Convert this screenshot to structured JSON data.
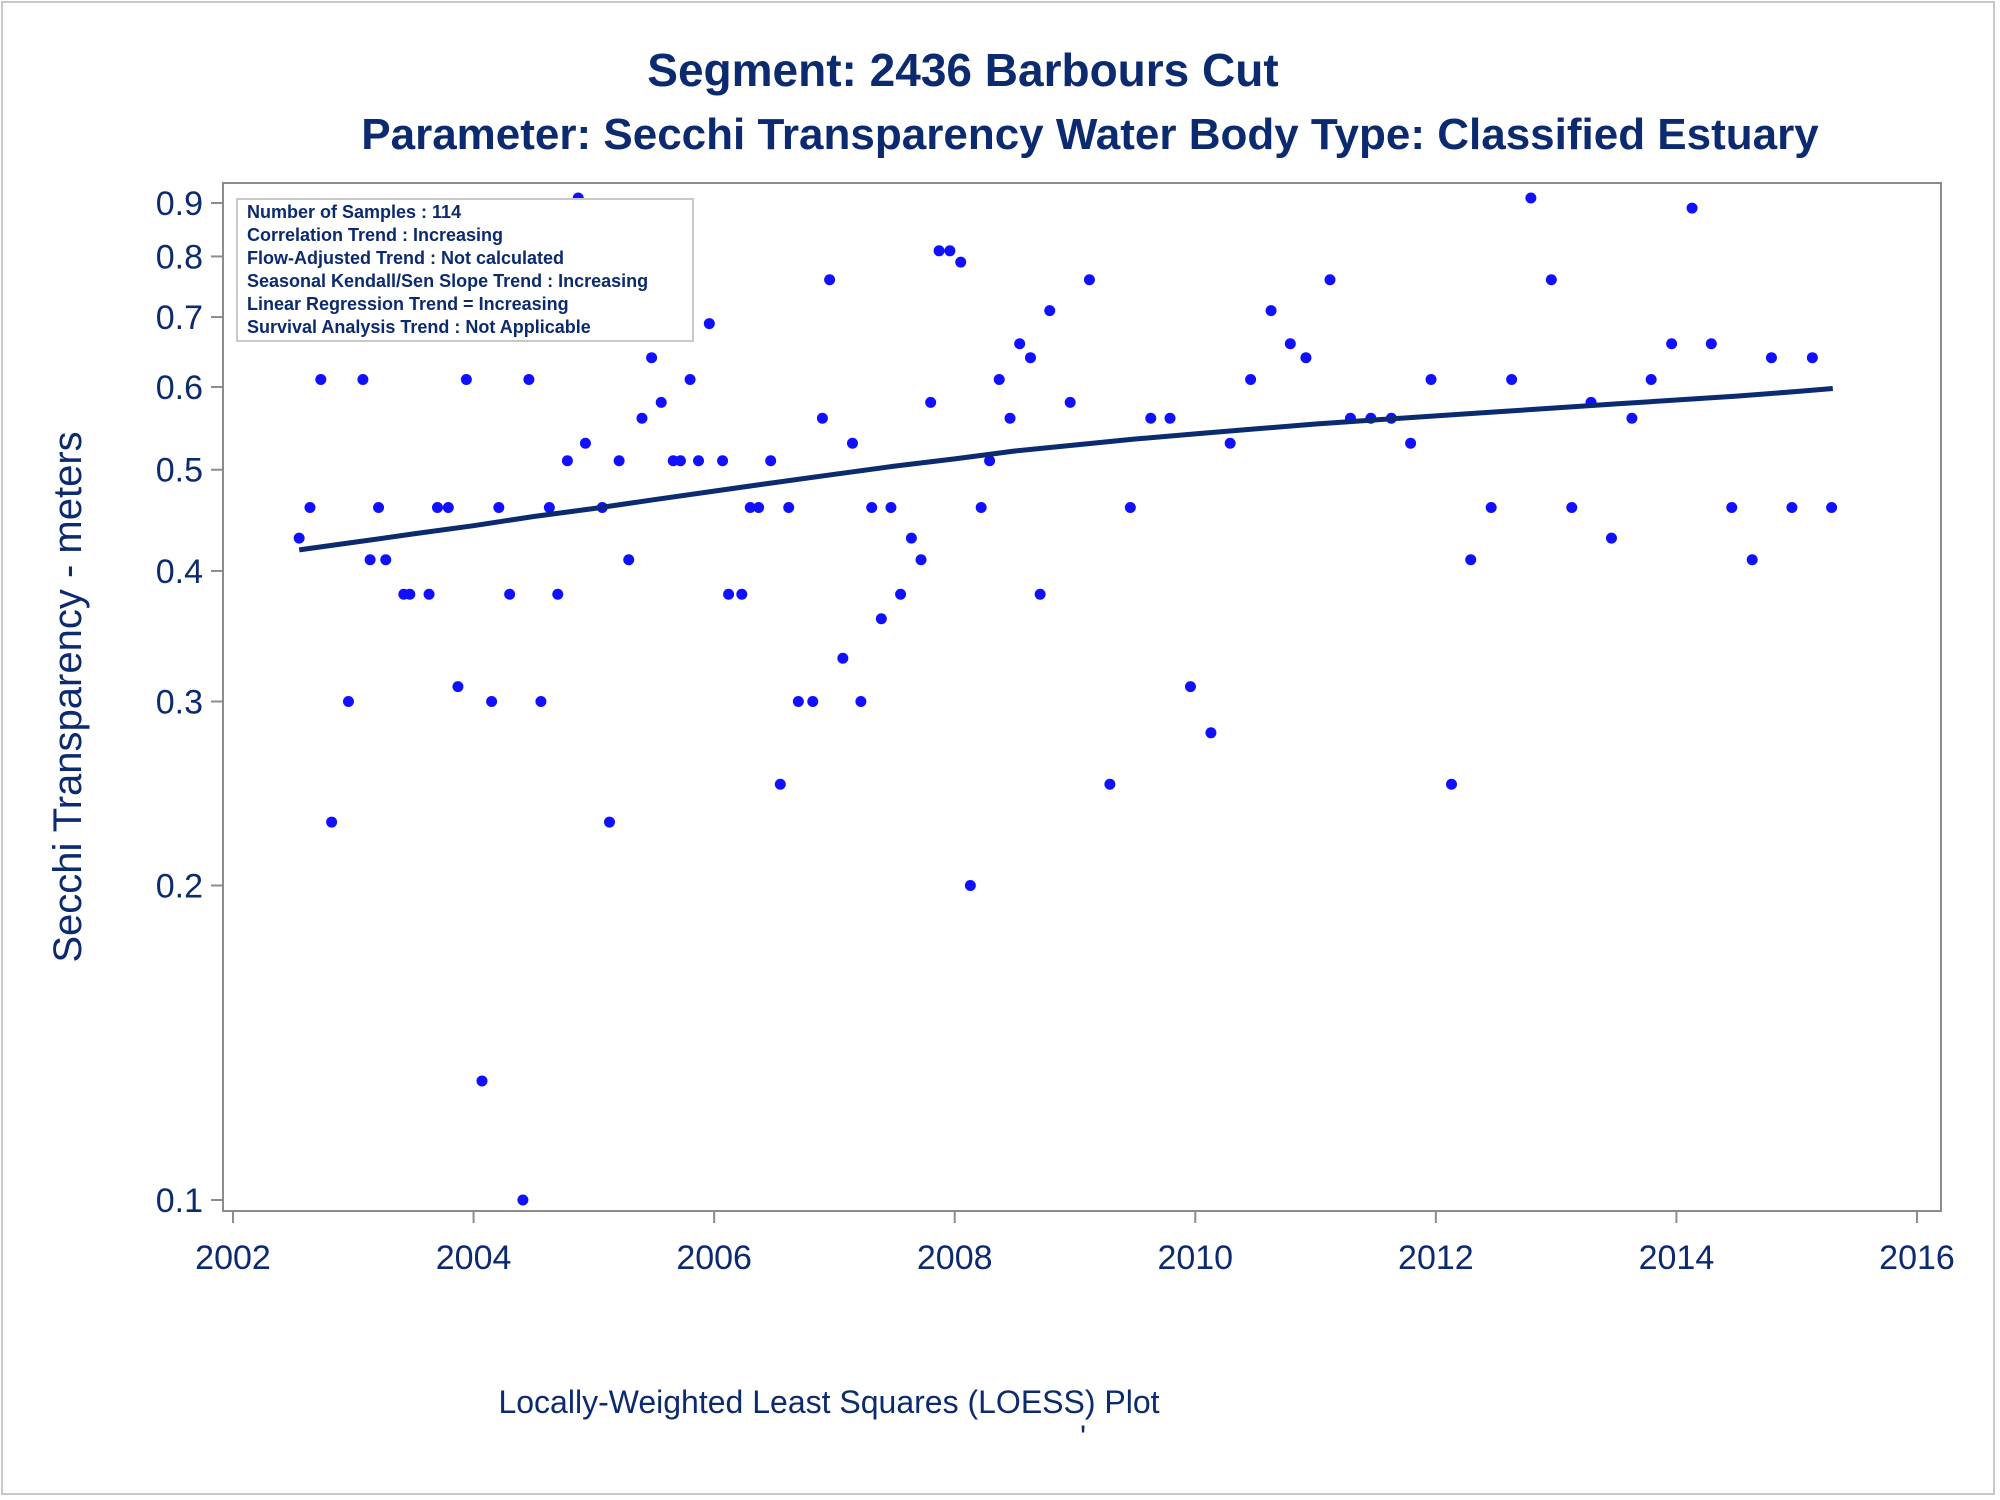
{
  "titles": {
    "line1": "Segment: 2436  Barbours Cut",
    "line2": "Parameter: Secchi Transparency   Water Body Type: Classified Estuary"
  },
  "footnote": "Locally-Weighted Least Squares (LOESS) Plot",
  "footnote_mark": "'",
  "stats_box": [
    "Number of Samples : 114",
    "Correlation Trend : Increasing",
    "Flow-Adjusted Trend : Not calculated",
    "Seasonal Kendall/Sen Slope Trend : Increasing",
    "Linear Regression Trend = Increasing",
    "Survival Analysis Trend : Not Applicable"
  ],
  "colors": {
    "title": "#0b2a6f",
    "points": "#1010ff",
    "loess_line": "#0b2a6f",
    "axis": "#8c8c8c"
  },
  "chart_data": {
    "type": "scatter",
    "xlabel": "",
    "ylabel": "Secchi Transparency - meters",
    "xlim": [
      2002,
      2016
    ],
    "ylim": [
      0.1,
      0.9
    ],
    "y_scale": "log",
    "x_ticks": [
      2002,
      2004,
      2006,
      2008,
      2010,
      2012,
      2014,
      2016
    ],
    "y_ticks": [
      0.1,
      0.2,
      0.3,
      0.4,
      0.5,
      0.6,
      0.7,
      0.8,
      0.9
    ],
    "grid": false,
    "legend": "none",
    "series": [
      {
        "type": "scatter",
        "x": [
          2002.55,
          2002.64,
          2002.73,
          2002.82,
          2002.87,
          2002.96,
          2003.08,
          2003.14,
          2003.21,
          2003.27,
          2003.42,
          2003.47,
          2003.63,
          2003.7,
          2003.79,
          2003.87,
          2003.94,
          2004.07,
          2004.15,
          2004.21,
          2004.3,
          2004.41,
          2004.46,
          2004.56,
          2004.63,
          2004.7,
          2004.78,
          2004.87,
          2004.93,
          2005.07,
          2005.13,
          2005.21,
          2005.29,
          2005.4,
          2005.48,
          2005.56,
          2005.66,
          2005.72,
          2005.8,
          2005.87,
          2005.96,
          2006.07,
          2006.12,
          2006.23,
          2006.3,
          2006.37,
          2006.47,
          2006.55,
          2006.62,
          2006.7,
          2006.82,
          2006.9,
          2006.96,
          2007.07,
          2007.15,
          2007.22,
          2007.31,
          2007.39,
          2007.47,
          2007.55,
          2007.64,
          2007.72,
          2007.8,
          2007.87,
          2007.96,
          2008.05,
          2008.13,
          2008.22,
          2008.29,
          2008.37,
          2008.46,
          2008.54,
          2008.63,
          2008.71,
          2008.79,
          2008.96,
          2009.12,
          2009.29,
          2009.46,
          2009.63,
          2009.79,
          2009.96,
          2010.13,
          2010.29,
          2010.46,
          2010.63,
          2010.79,
          2010.92,
          2011.12,
          2011.29,
          2011.46,
          2011.63,
          2011.79,
          2011.96,
          2012.13,
          2012.29,
          2012.46,
          2012.63,
          2012.79,
          2012.96,
          2013.13,
          2013.29,
          2013.46,
          2013.63,
          2013.79,
          2013.96,
          2014.13,
          2014.29,
          2014.46,
          2014.63,
          2014.79,
          2014.96,
          2015.13,
          2015.29
        ],
        "y": [
          0.43,
          0.46,
          0.61,
          0.23,
          0.69,
          0.3,
          0.61,
          0.41,
          0.46,
          0.41,
          0.38,
          0.38,
          0.38,
          0.46,
          0.46,
          0.31,
          0.61,
          0.13,
          0.3,
          0.46,
          0.38,
          0.1,
          0.61,
          0.3,
          0.46,
          0.38,
          0.51,
          0.91,
          0.53,
          0.46,
          0.23,
          0.51,
          0.41,
          0.56,
          0.64,
          0.58,
          0.51,
          0.51,
          0.61,
          0.51,
          0.69,
          0.51,
          0.38,
          0.38,
          0.46,
          0.46,
          0.51,
          0.25,
          0.46,
          0.3,
          0.3,
          0.56,
          0.76,
          0.33,
          0.53,
          0.3,
          0.46,
          0.36,
          0.46,
          0.38,
          0.43,
          0.41,
          0.58,
          0.81,
          0.81,
          0.79,
          0.2,
          0.46,
          0.51,
          0.61,
          0.56,
          0.66,
          0.64,
          0.38,
          0.71,
          0.58,
          0.76,
          0.25,
          0.46,
          0.56,
          0.56,
          0.31,
          0.28,
          0.53,
          0.61,
          0.71,
          0.66,
          0.64,
          0.76,
          0.56,
          0.56,
          0.56,
          0.53,
          0.61,
          0.25,
          0.41,
          0.46,
          0.61,
          0.91,
          0.76,
          0.46,
          0.58,
          0.43,
          0.56,
          0.61,
          0.66,
          0.89,
          0.66,
          0.46,
          0.41,
          0.64,
          0.46,
          0.64,
          0.46
        ]
      },
      {
        "type": "line",
        "x": [
          2002.55,
          2003.0,
          2003.5,
          2004.0,
          2004.5,
          2005.0,
          2005.5,
          2006.0,
          2006.5,
          2007.0,
          2007.5,
          2008.0,
          2008.5,
          2009.0,
          2009.5,
          2010.0,
          2010.5,
          2011.0,
          2011.5,
          2012.0,
          2012.5,
          2013.0,
          2013.5,
          2014.0,
          2014.5,
          2015.0,
          2015.3
        ],
        "y": [
          0.419,
          0.426,
          0.434,
          0.442,
          0.451,
          0.459,
          0.468,
          0.477,
          0.486,
          0.495,
          0.504,
          0.512,
          0.521,
          0.528,
          0.535,
          0.541,
          0.547,
          0.553,
          0.558,
          0.563,
          0.568,
          0.573,
          0.578,
          0.583,
          0.588,
          0.594,
          0.598
        ]
      }
    ]
  }
}
